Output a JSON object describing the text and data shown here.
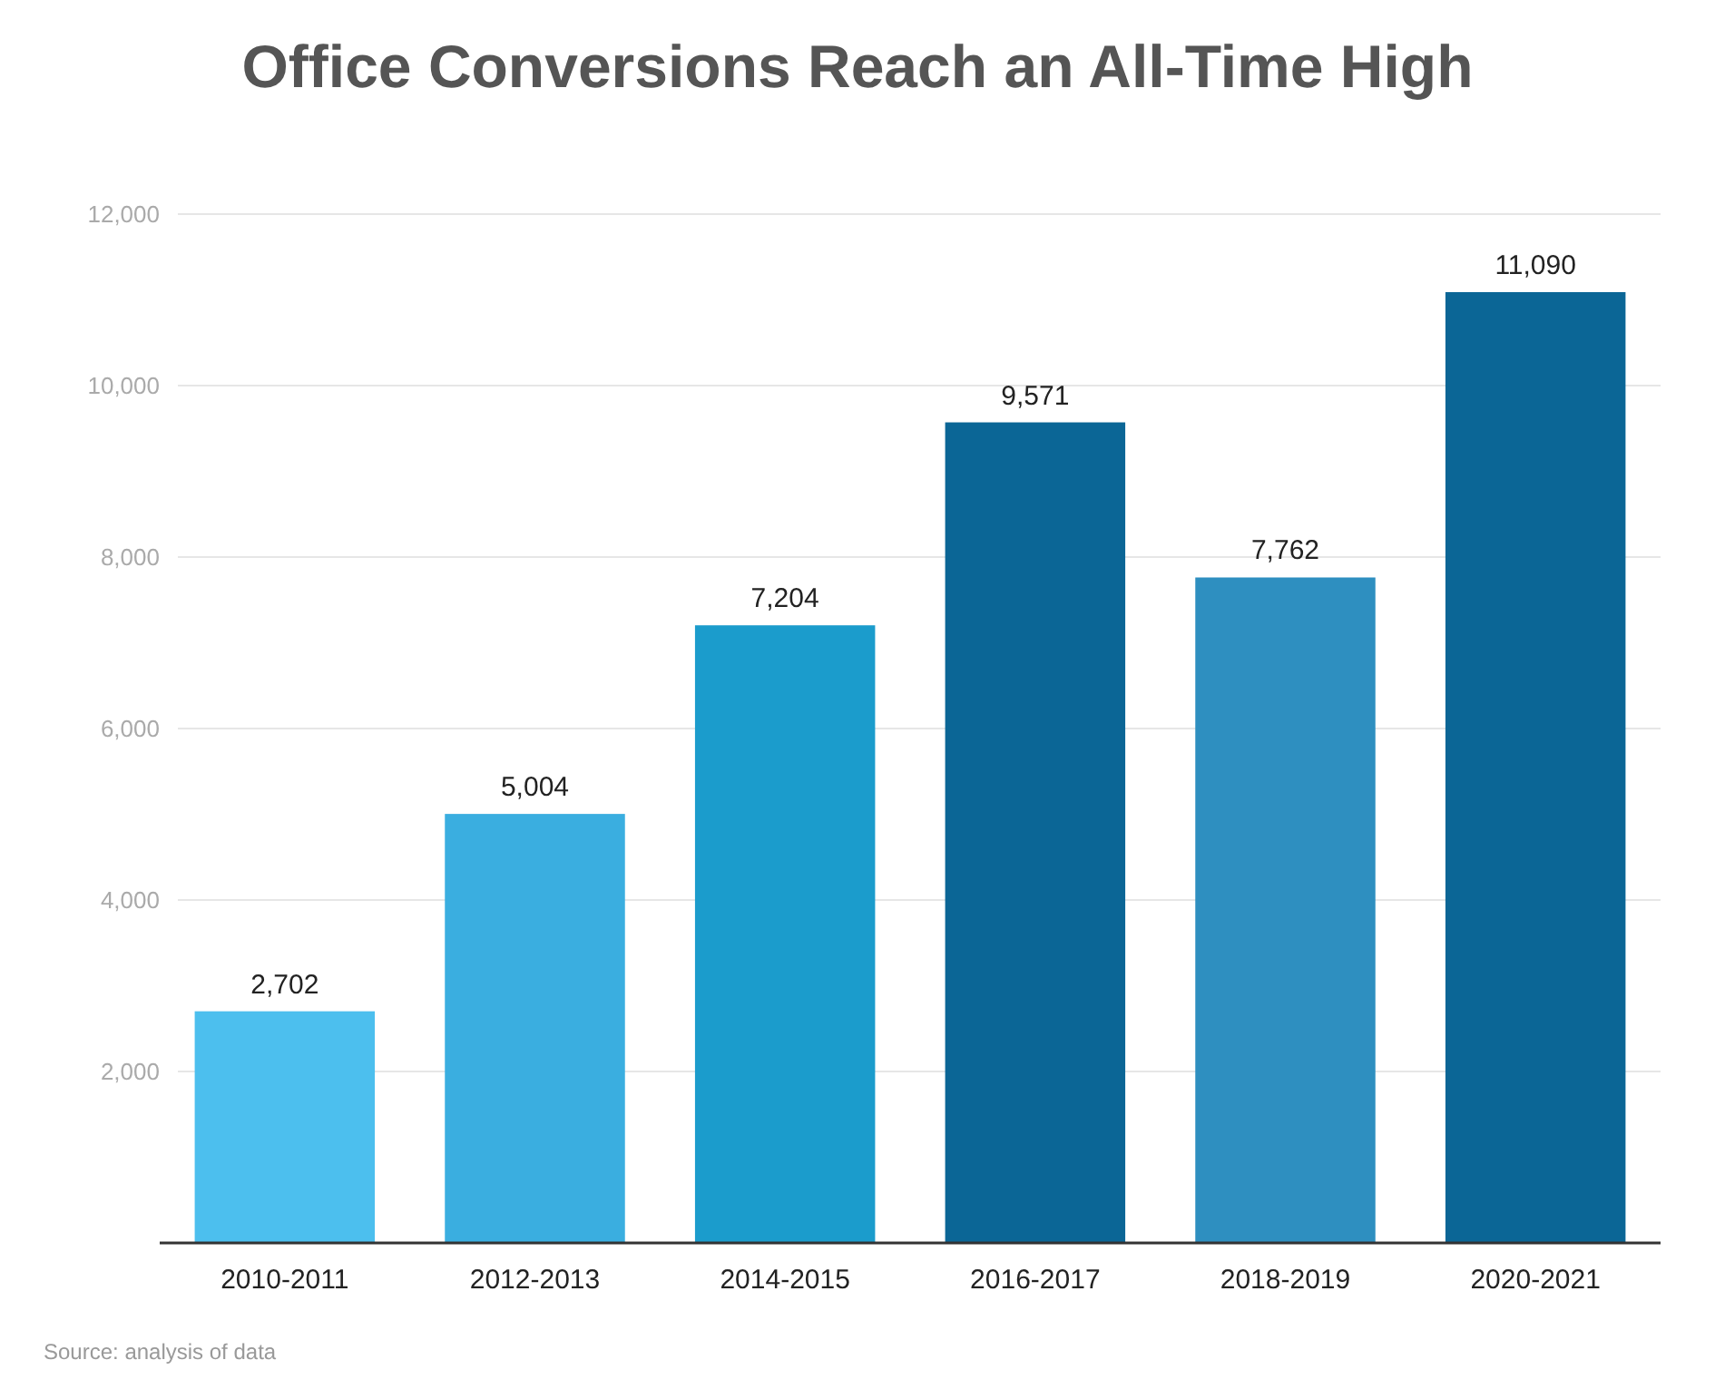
{
  "chart_data": {
    "type": "bar",
    "title": "Office Conversions Reach an All-Time High",
    "categories": [
      "2010-2011",
      "2012-2013",
      "2014-2015",
      "2016-2017",
      "2018-2019",
      "2020-2021"
    ],
    "values": [
      2702,
      5004,
      7204,
      9571,
      7762,
      11090
    ],
    "colors": [
      "#4cbfee",
      "#3aaee0",
      "#1b9ccc",
      "#0b6696",
      "#2e8fc0",
      "#0b6696"
    ],
    "value_labels": [
      "2,702",
      "5,004",
      "7,204",
      "9,571",
      "7,762",
      "11,090"
    ],
    "ylim": [
      0,
      12000
    ],
    "yticks": [
      {
        "value": 2000,
        "label": "2,000"
      },
      {
        "value": 4000,
        "label": "4,000"
      },
      {
        "value": 6000,
        "label": "6,000"
      },
      {
        "value": 8000,
        "label": "8,000"
      },
      {
        "value": 10000,
        "label": "10,000"
      },
      {
        "value": 12000,
        "label": "12,000"
      }
    ],
    "grid": "y",
    "annotations": [
      "Source: analysis of data"
    ]
  }
}
